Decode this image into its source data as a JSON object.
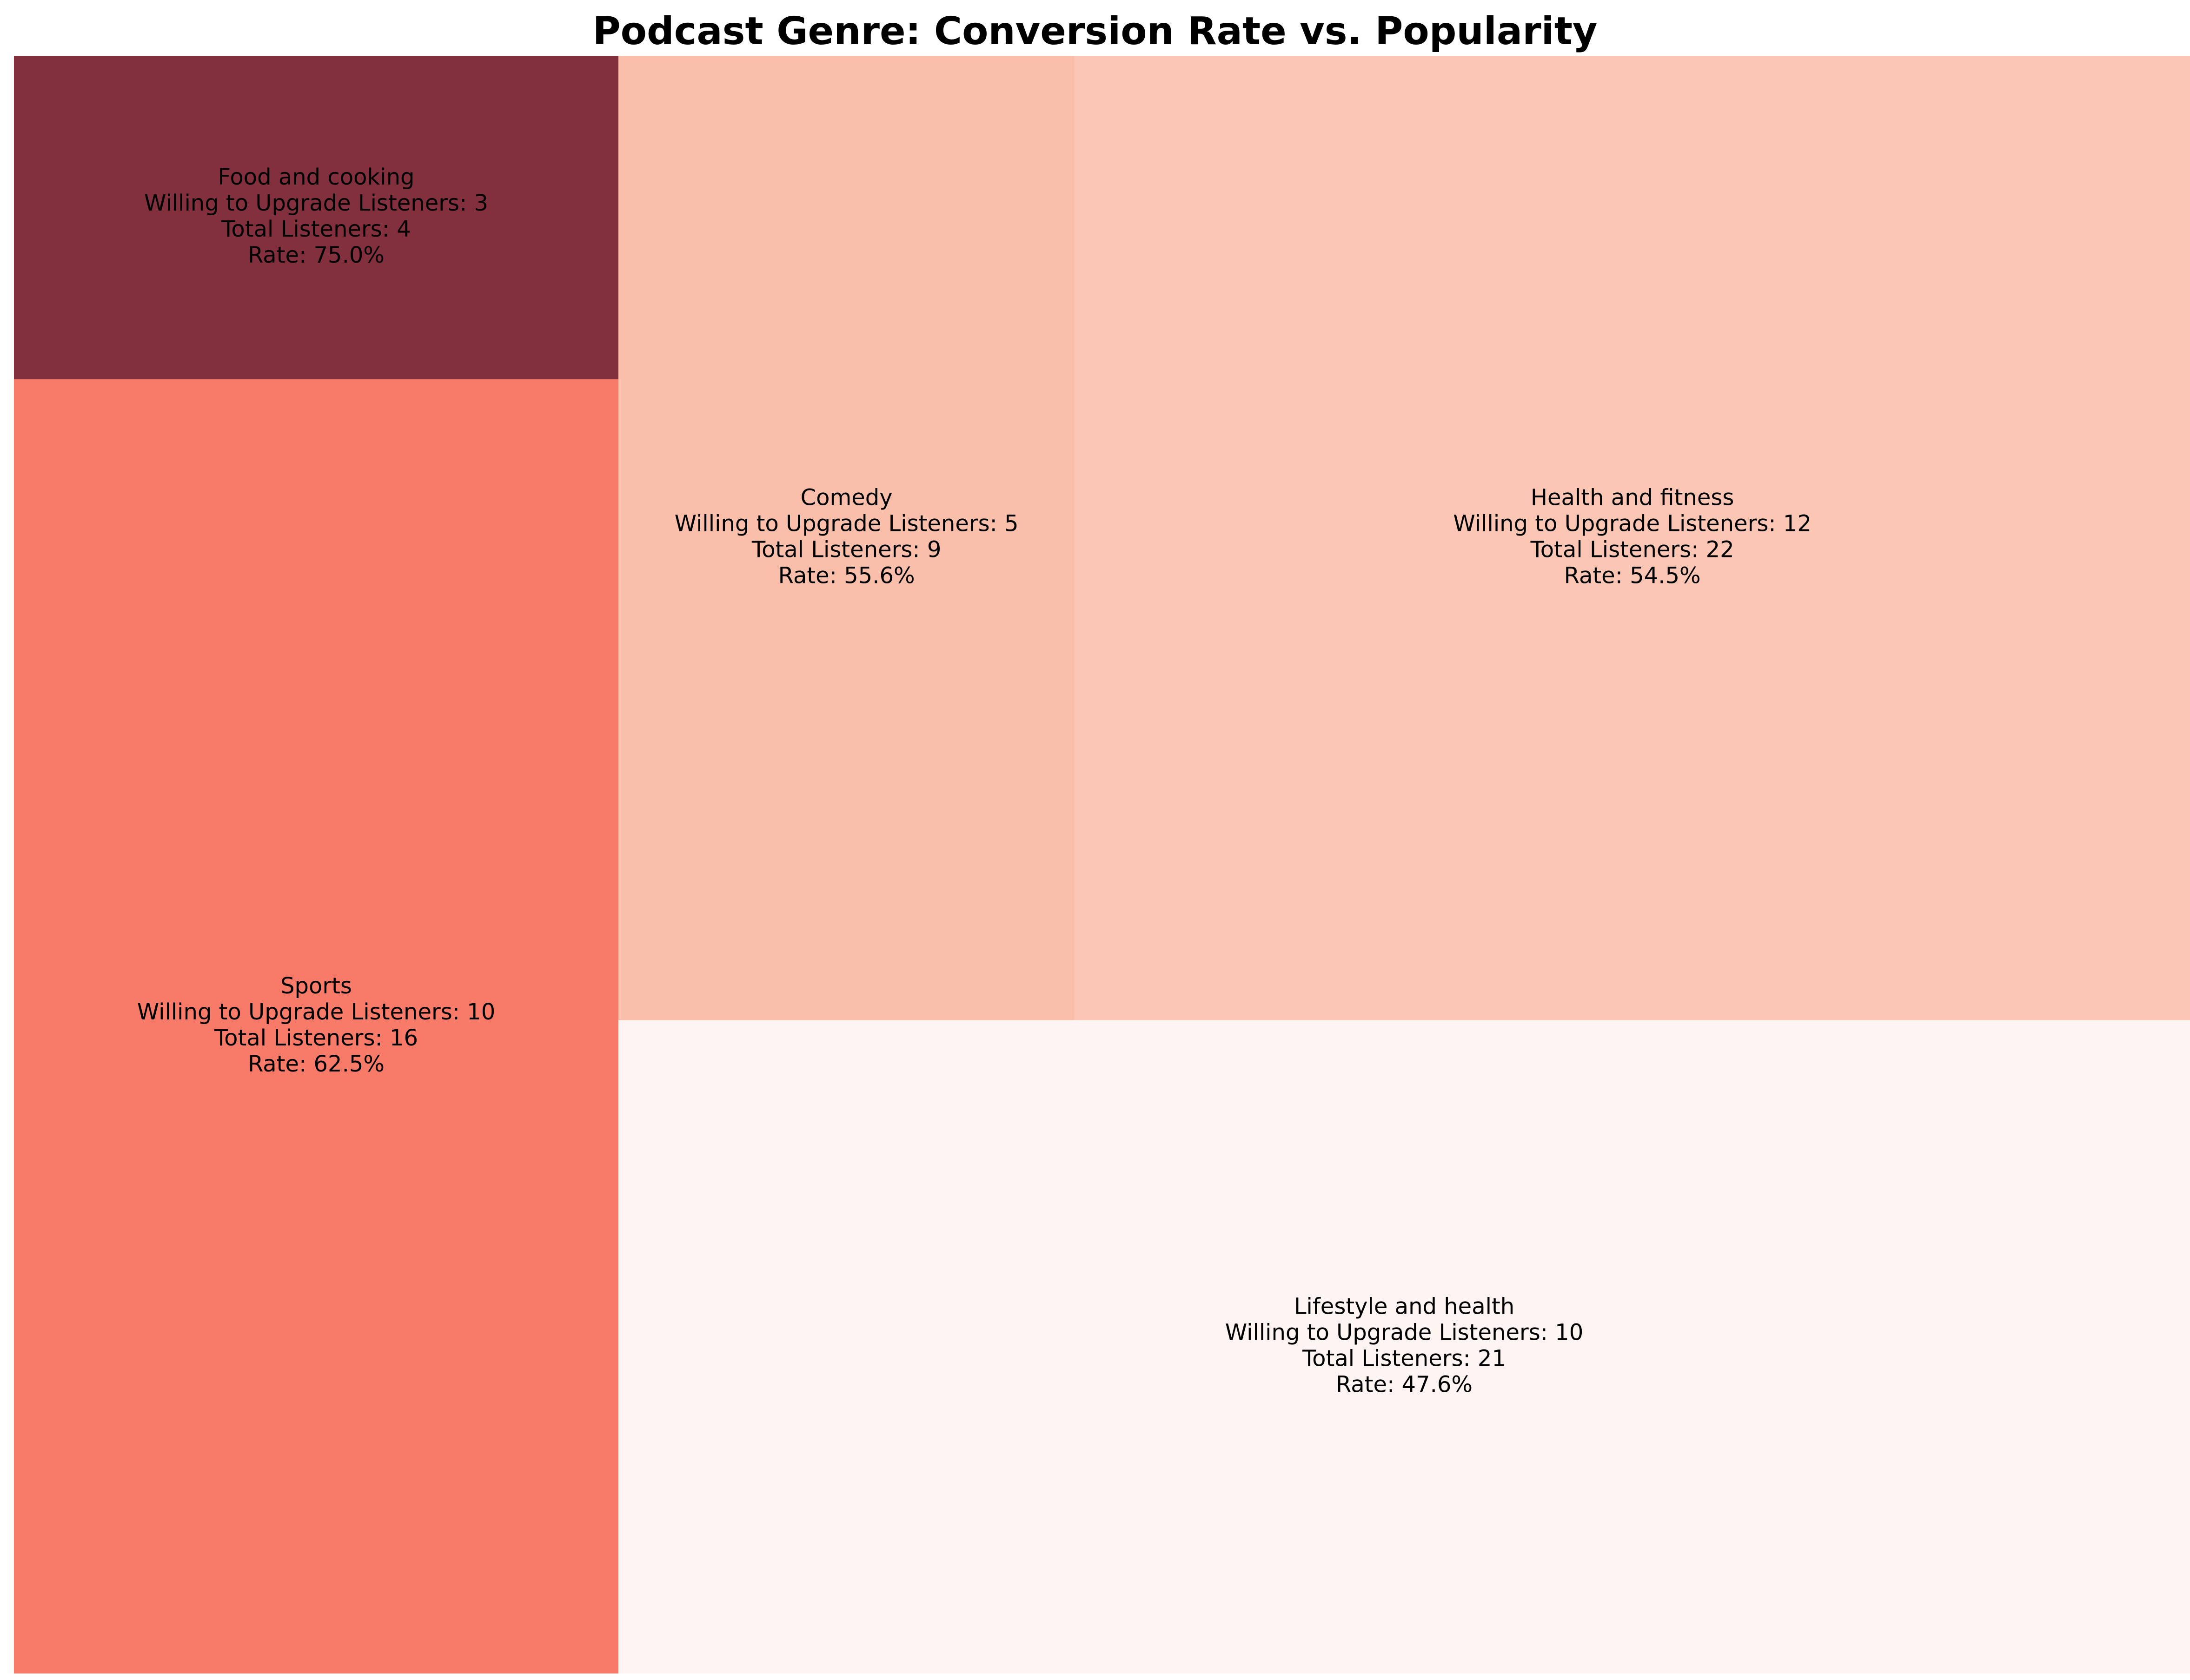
{
  "chart_data": {
    "type": "treemap",
    "title": "Podcast Genre: Conversion Rate vs. Popularity",
    "size_metric": "Total Listeners",
    "color_metric": "Rate",
    "color_scale": "Reds",
    "items": [
      {
        "genre": "Food and cooking",
        "willing": 3,
        "total": 4,
        "rate": 75.0,
        "color": "#82303d",
        "text_color": "#000000",
        "lines": [
          "Food and cooking",
          "Willing to Upgrade Listeners: 3",
          "Total Listeners: 4",
          "Rate: 75.0%"
        ]
      },
      {
        "genre": "Sports",
        "willing": 10,
        "total": 16,
        "rate": 62.5,
        "color": "#f87a69",
        "text_color": "#000000",
        "lines": [
          "Sports",
          "Willing to Upgrade Listeners: 10",
          "Total Listeners: 16",
          "Rate: 62.5%"
        ]
      },
      {
        "genre": "Comedy",
        "willing": 5,
        "total": 9,
        "rate": 55.6,
        "color": "#fabfab",
        "text_color": "#000000",
        "lines": [
          "Comedy",
          "Willing to Upgrade Listeners: 5",
          "Total Listeners: 9",
          "Rate: 55.6%"
        ]
      },
      {
        "genre": "Health and fitness",
        "willing": 12,
        "total": 22,
        "rate": 54.5,
        "color": "#fbc7b4",
        "text_color": "#000000",
        "lines": [
          "Health and fitness",
          "Willing to Upgrade Listeners: 12",
          "Total Listeners: 22",
          "Rate: 54.5%"
        ]
      },
      {
        "genre": "Lifestyle and health",
        "willing": 10,
        "total": 21,
        "rate": 47.6,
        "color": "#fef4f1",
        "text_color": "#000000",
        "lines": [
          "Lifestyle and health",
          "Willing to Upgrade Listeners: 10",
          "Total Listeners: 21",
          "Rate: 47.6%"
        ]
      }
    ]
  }
}
